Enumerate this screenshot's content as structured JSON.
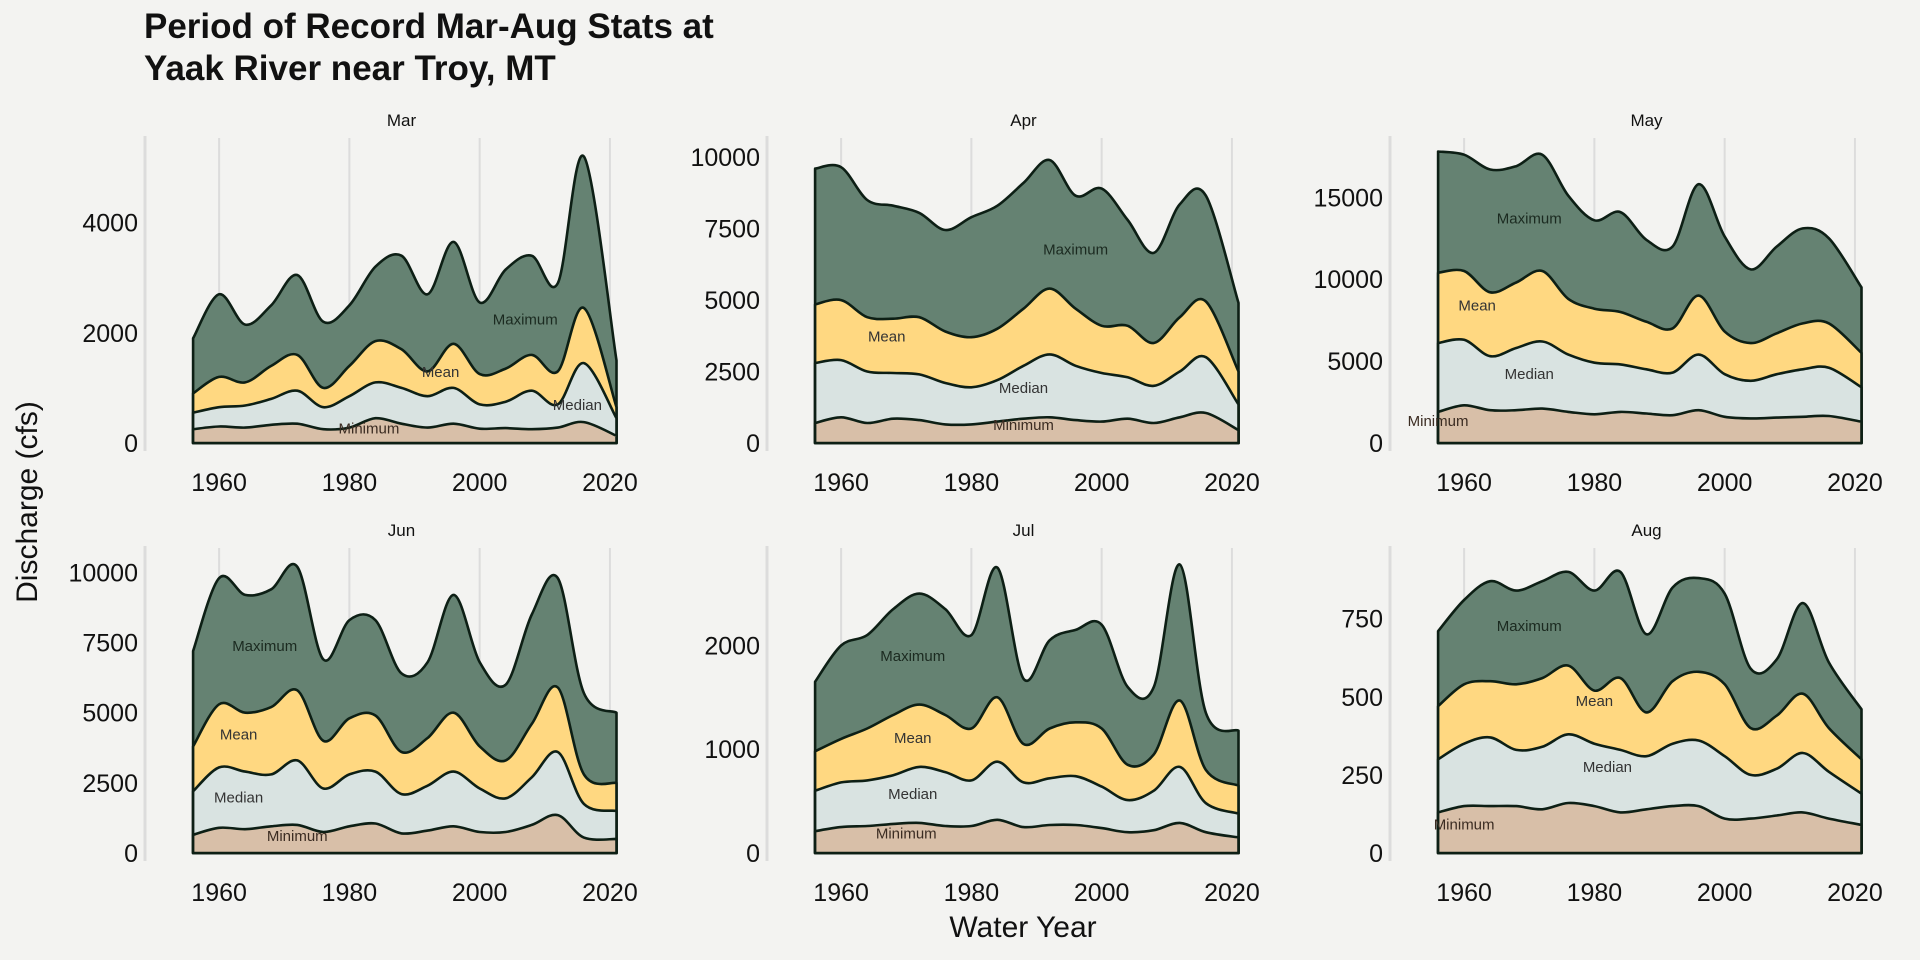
{
  "title_lines": [
    "Period of Record Mar-Aug Stats at",
    "Yaak River near Troy, MT"
  ],
  "xlabel": "Water Year",
  "ylabel": "Discharge (cfs)",
  "colors": {
    "background": "#f3f3f1",
    "Maximum": "#658272",
    "Mean": "#ffd881",
    "Median": "#d9e3e1",
    "Minimum": "#d8bfa8",
    "outline": "#0d1f15"
  },
  "chart_data": [
    {
      "type": "area",
      "facet": "Mar",
      "ylim": [
        0,
        5500
      ],
      "yticks": [
        0,
        2000,
        4000
      ],
      "xlim": [
        1952,
        2024
      ],
      "xticks": [
        1960,
        1980,
        2000,
        2020
      ],
      "x": [
        1956,
        1960,
        1964,
        1968,
        1972,
        1976,
        1980,
        1984,
        1988,
        1992,
        1996,
        2000,
        2004,
        2008,
        2012,
        2016,
        2021
      ],
      "series": [
        {
          "name": "Minimum",
          "values": [
            250,
            300,
            280,
            330,
            350,
            250,
            280,
            450,
            350,
            280,
            350,
            260,
            270,
            250,
            280,
            380,
            130
          ]
        },
        {
          "name": "Median",
          "values": [
            550,
            650,
            680,
            800,
            950,
            650,
            850,
            1100,
            1000,
            850,
            1000,
            700,
            750,
            950,
            700,
            1450,
            450
          ]
        },
        {
          "name": "Mean",
          "values": [
            900,
            1200,
            1100,
            1400,
            1600,
            1000,
            1400,
            1850,
            1700,
            1300,
            1800,
            1250,
            1350,
            1600,
            1300,
            2450,
            650
          ]
        },
        {
          "name": "Maximum",
          "values": [
            1900,
            2700,
            2150,
            2500,
            3050,
            2200,
            2500,
            3200,
            3400,
            2700,
            3650,
            2550,
            3150,
            3400,
            2900,
            5200,
            1500
          ]
        }
      ],
      "labels": [
        {
          "text": "Minimum",
          "x": 1983,
          "y": 170
        },
        {
          "text": "Median",
          "x": 2015,
          "y": 600
        },
        {
          "text": "Mean",
          "x": 1994,
          "y": 1200
        },
        {
          "text": "Maximum",
          "x": 2007,
          "y": 2150
        }
      ]
    },
    {
      "type": "area",
      "facet": "Apr",
      "ylim": [
        0,
        10600
      ],
      "yticks": [
        0,
        2500,
        5000,
        7500,
        10000
      ],
      "xlim": [
        1952,
        2024
      ],
      "xticks": [
        1960,
        1980,
        2000,
        2020
      ],
      "x": [
        1956,
        1960,
        1964,
        1968,
        1972,
        1976,
        1980,
        1984,
        1988,
        1992,
        1996,
        2000,
        2004,
        2008,
        2012,
        2016,
        2021
      ],
      "series": [
        {
          "name": "Minimum",
          "values": [
            700,
            900,
            700,
            850,
            800,
            650,
            650,
            750,
            850,
            900,
            800,
            750,
            850,
            700,
            900,
            1050,
            450
          ]
        },
        {
          "name": "Median",
          "values": [
            2800,
            2900,
            2500,
            2450,
            2400,
            2100,
            1950,
            2200,
            2700,
            3100,
            2700,
            2450,
            2300,
            2000,
            2500,
            3000,
            1350
          ]
        },
        {
          "name": "Mean",
          "values": [
            4850,
            5000,
            4400,
            4350,
            4400,
            3900,
            3700,
            4000,
            4700,
            5400,
            4700,
            4100,
            4100,
            3500,
            4400,
            4950,
            2500
          ]
        },
        {
          "name": "Maximum",
          "values": [
            9600,
            9650,
            8500,
            8300,
            8050,
            7450,
            7900,
            8300,
            9100,
            9900,
            8650,
            8900,
            7800,
            6650,
            8350,
            8650,
            4900
          ]
        }
      ],
      "labels": [
        {
          "text": "Minimum",
          "x": 1988,
          "y": 450
        },
        {
          "text": "Median",
          "x": 1988,
          "y": 1750
        },
        {
          "text": "Mean",
          "x": 1967,
          "y": 3550
        },
        {
          "text": "Maximum",
          "x": 1996,
          "y": 6600
        }
      ]
    },
    {
      "type": "area",
      "facet": "May",
      "ylim": [
        0,
        18500
      ],
      "yticks": [
        0,
        5000,
        10000,
        15000
      ],
      "xlim": [
        1952,
        2024
      ],
      "xticks": [
        1960,
        1980,
        2000,
        2020
      ],
      "x": [
        1956,
        1960,
        1964,
        1968,
        1972,
        1976,
        1980,
        1984,
        1988,
        1992,
        1996,
        2000,
        2004,
        2008,
        2012,
        2016,
        2021
      ],
      "series": [
        {
          "name": "Minimum",
          "values": [
            1900,
            2300,
            2000,
            2000,
            2100,
            1900,
            1750,
            1900,
            1800,
            1700,
            2000,
            1600,
            1500,
            1550,
            1600,
            1650,
            1300
          ]
        },
        {
          "name": "Median",
          "values": [
            6100,
            6300,
            5300,
            5800,
            6200,
            5400,
            4900,
            4800,
            4500,
            4300,
            5400,
            4200,
            3800,
            4200,
            4500,
            4600,
            3400
          ]
        },
        {
          "name": "Mean",
          "values": [
            10400,
            10500,
            9200,
            9800,
            10500,
            8800,
            8200,
            8000,
            7400,
            7000,
            9000,
            6800,
            6100,
            6700,
            7300,
            7300,
            5500
          ]
        },
        {
          "name": "Maximum",
          "values": [
            17800,
            17600,
            16700,
            16900,
            17600,
            15100,
            13600,
            14100,
            12400,
            12000,
            15800,
            12600,
            10600,
            12000,
            13100,
            12500,
            9500
          ]
        }
      ],
      "labels": [
        {
          "text": "Minimum",
          "x": 1956,
          "y": 1050
        },
        {
          "text": "Median",
          "x": 1970,
          "y": 3900
        },
        {
          "text": "Mean",
          "x": 1962,
          "y": 8100
        },
        {
          "text": "Maximum",
          "x": 1970,
          "y": 13400
        }
      ]
    },
    {
      "type": "area",
      "facet": "Jun",
      "ylim": [
        0,
        10800
      ],
      "yticks": [
        0,
        2500,
        5000,
        7500,
        10000
      ],
      "xlim": [
        1952,
        2024
      ],
      "xticks": [
        1960,
        1980,
        2000,
        2020
      ],
      "x": [
        1956,
        1960,
        1964,
        1968,
        1972,
        1976,
        1980,
        1984,
        1988,
        1992,
        1996,
        2000,
        2004,
        2008,
        2012,
        2016,
        2021
      ],
      "series": [
        {
          "name": "Minimum",
          "values": [
            650,
            900,
            850,
            950,
            1000,
            750,
            950,
            1050,
            700,
            800,
            950,
            750,
            750,
            1000,
            1350,
            550,
            500
          ]
        },
        {
          "name": "Median",
          "values": [
            2200,
            3050,
            2900,
            2800,
            3300,
            2300,
            2800,
            2900,
            2100,
            2400,
            2900,
            2300,
            1950,
            2700,
            3600,
            1750,
            1500
          ]
        },
        {
          "name": "Mean",
          "values": [
            3800,
            5300,
            5000,
            5200,
            5800,
            4000,
            4800,
            4900,
            3600,
            4100,
            5000,
            3800,
            3300,
            4600,
            5900,
            2800,
            2500
          ]
        },
        {
          "name": "Maximum",
          "values": [
            7200,
            9800,
            9200,
            9400,
            10200,
            6900,
            8300,
            8300,
            6400,
            6800,
            9200,
            6800,
            6000,
            8500,
            9800,
            5700,
            5000
          ]
        }
      ],
      "labels": [
        {
          "text": "Minimum",
          "x": 1972,
          "y": 420
        },
        {
          "text": "Median",
          "x": 1963,
          "y": 1800
        },
        {
          "text": "Mean",
          "x": 1963,
          "y": 4050
        },
        {
          "text": "Maximum",
          "x": 1967,
          "y": 7200
        }
      ]
    },
    {
      "type": "area",
      "facet": "Jul",
      "ylim": [
        0,
        2920
      ],
      "yticks": [
        0,
        1000,
        2000
      ],
      "xlim": [
        1952,
        2024
      ],
      "xticks": [
        1960,
        1980,
        2000,
        2020
      ],
      "x": [
        1956,
        1960,
        1964,
        1968,
        1972,
        1976,
        1980,
        1984,
        1988,
        1992,
        1996,
        2000,
        2004,
        2008,
        2012,
        2016,
        2021
      ],
      "series": [
        {
          "name": "Minimum",
          "values": [
            210,
            250,
            260,
            280,
            290,
            260,
            260,
            320,
            250,
            270,
            270,
            240,
            200,
            220,
            290,
            200,
            150
          ]
        },
        {
          "name": "Median",
          "values": [
            600,
            680,
            700,
            750,
            830,
            780,
            700,
            880,
            680,
            720,
            740,
            640,
            510,
            600,
            830,
            480,
            380
          ]
        },
        {
          "name": "Mean",
          "values": [
            980,
            1100,
            1200,
            1330,
            1430,
            1330,
            1200,
            1500,
            1050,
            1200,
            1260,
            1200,
            850,
            950,
            1470,
            800,
            650
          ]
        },
        {
          "name": "Maximum",
          "values": [
            1650,
            2000,
            2100,
            2350,
            2500,
            2350,
            2100,
            2750,
            1680,
            2050,
            2150,
            2200,
            1600,
            1600,
            2780,
            1350,
            1180
          ]
        }
      ],
      "labels": [
        {
          "text": "Minimum",
          "x": 1970,
          "y": 140
        },
        {
          "text": "Median",
          "x": 1971,
          "y": 520
        },
        {
          "text": "Mean",
          "x": 1971,
          "y": 1060
        },
        {
          "text": "Maximum",
          "x": 1971,
          "y": 1850
        }
      ]
    },
    {
      "type": "area",
      "facet": "Aug",
      "ylim": [
        0,
        970
      ],
      "yticks": [
        0,
        250,
        500,
        750
      ],
      "xlim": [
        1952,
        2024
      ],
      "xticks": [
        1960,
        1980,
        2000,
        2020
      ],
      "x": [
        1956,
        1960,
        1964,
        1968,
        1972,
        1976,
        1980,
        1984,
        1988,
        1992,
        1996,
        2000,
        2004,
        2008,
        2012,
        2016,
        2021
      ],
      "series": [
        {
          "name": "Minimum",
          "values": [
            130,
            150,
            150,
            150,
            140,
            160,
            150,
            130,
            140,
            150,
            150,
            110,
            110,
            120,
            130,
            110,
            90
          ]
        },
        {
          "name": "Median",
          "values": [
            300,
            350,
            370,
            330,
            340,
            380,
            350,
            330,
            310,
            350,
            360,
            310,
            250,
            270,
            320,
            260,
            190
          ]
        },
        {
          "name": "Mean",
          "values": [
            470,
            540,
            550,
            540,
            560,
            600,
            520,
            560,
            450,
            550,
            580,
            540,
            400,
            440,
            510,
            400,
            300
          ]
        },
        {
          "name": "Maximum",
          "values": [
            710,
            810,
            870,
            840,
            870,
            900,
            840,
            900,
            700,
            850,
            880,
            830,
            590,
            620,
            800,
            610,
            460
          ]
        }
      ],
      "labels": [
        {
          "text": "Minimum",
          "x": 1960,
          "y": 75
        },
        {
          "text": "Median",
          "x": 1982,
          "y": 260
        },
        {
          "text": "Mean",
          "x": 1980,
          "y": 470
        },
        {
          "text": "Maximum",
          "x": 1970,
          "y": 710
        }
      ]
    }
  ]
}
